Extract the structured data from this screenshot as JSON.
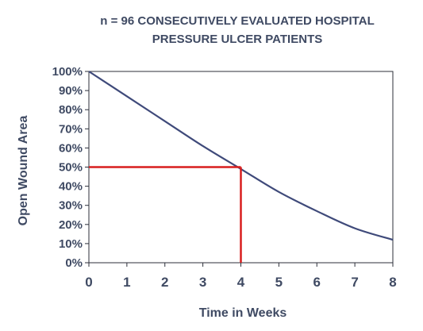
{
  "chart_data": {
    "type": "line",
    "title": "n = 96 CONSECUTIVELY EVALUATED HOSPITAL",
    "subtitle": "PRESSURE ULCER PATIENTS",
    "xlabel": "Time in Weeks",
    "ylabel": "Open Wound Area",
    "xlim": [
      0,
      8
    ],
    "ylim": [
      0,
      100
    ],
    "x_ticks": [
      "0",
      "1",
      "2",
      "3",
      "4",
      "5",
      "6",
      "7",
      "8"
    ],
    "y_ticks": [
      "0%",
      "10%",
      "20%",
      "30%",
      "40%",
      "50%",
      "60%",
      "70%",
      "80%",
      "90%",
      "100%"
    ],
    "grid": false,
    "series": [
      {
        "color": "#3f4a7a",
        "x": [
          0,
          1,
          2,
          3,
          4,
          5,
          6,
          7,
          8
        ],
        "y": [
          100,
          87,
          74,
          61,
          49,
          37,
          27,
          18,
          12
        ]
      }
    ],
    "reference_lines": {
      "color": "#d81e1e",
      "x": 4,
      "y": 50
    }
  }
}
